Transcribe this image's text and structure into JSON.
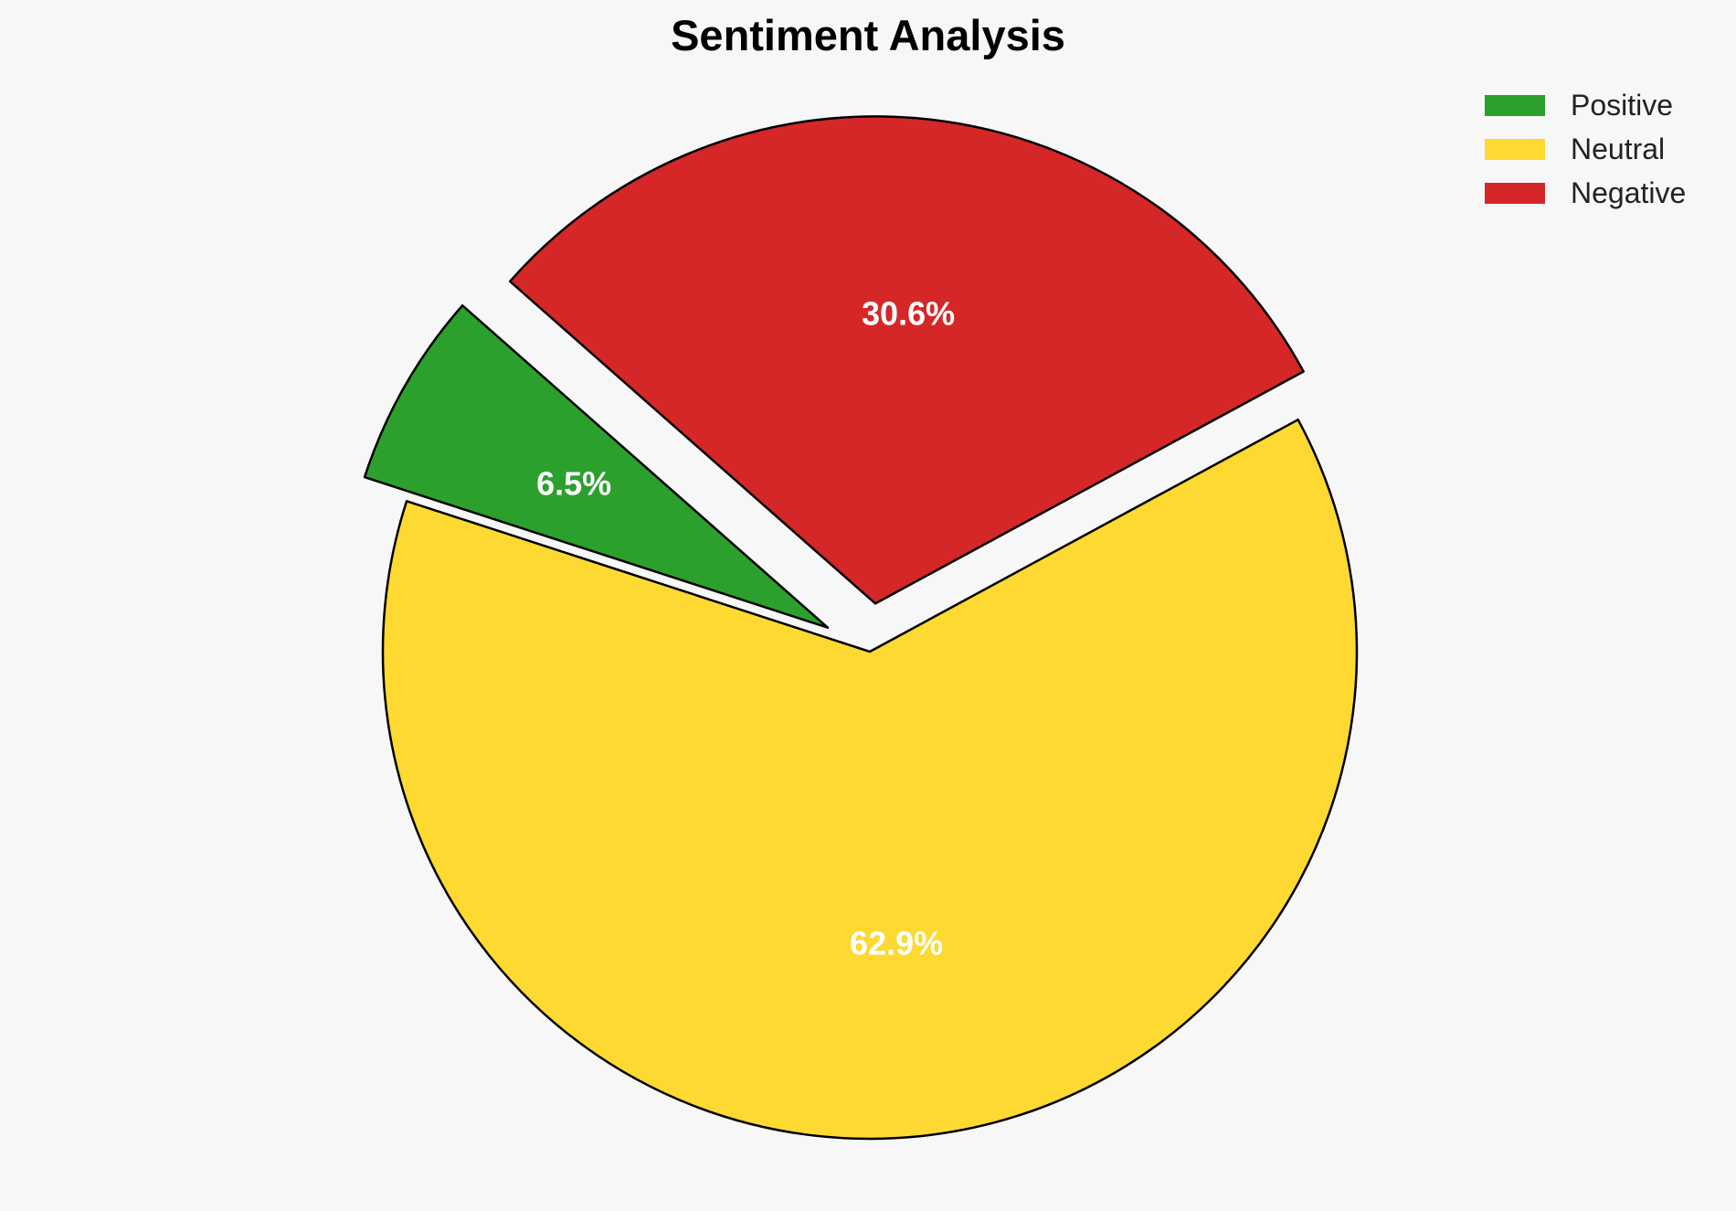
{
  "chart_data": {
    "type": "pie",
    "title": "Sentiment Analysis",
    "legend_position": "top-right",
    "start_angle_deg": 162,
    "direction": "clockwise",
    "slices": [
      {
        "label": "Positive",
        "value": 6.5,
        "display": "6.5%",
        "color": "#2ca02c",
        "exploded": true
      },
      {
        "label": "Negative",
        "value": 30.6,
        "display": "30.6%",
        "color": "#d62728",
        "exploded": true
      },
      {
        "label": "Neutral",
        "value": 62.9,
        "display": "62.9%",
        "color": "#fdd931",
        "exploded": false
      }
    ],
    "legend": [
      {
        "label": "Positive",
        "color": "#2ca02c"
      },
      {
        "label": "Neutral",
        "color": "#fdd931"
      },
      {
        "label": "Negative",
        "color": "#d62728"
      }
    ],
    "edge_color": "#000000"
  }
}
